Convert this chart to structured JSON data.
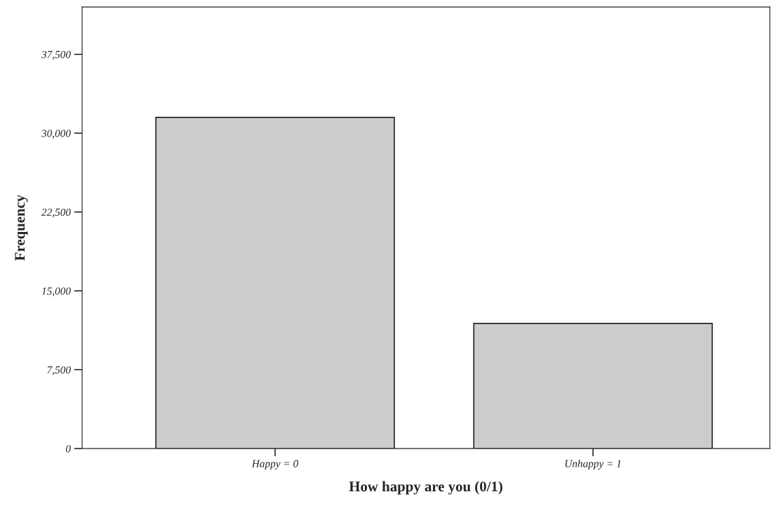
{
  "chart_data": {
    "type": "bar",
    "xlabel": "How happy are you (0/1)",
    "ylabel": "Frequency",
    "categories": [
      "Happy = 0",
      "Unhappy = 1"
    ],
    "values": [
      31500,
      11900
    ],
    "color": "#cccccc",
    "ylim": [
      0,
      42000
    ],
    "yticks": [
      {
        "value": 0,
        "label": "0"
      },
      {
        "value": 7500,
        "label": "7,500"
      },
      {
        "value": 15000,
        "label": "15,000"
      },
      {
        "value": 22500,
        "label": "22,500"
      },
      {
        "value": 30000,
        "label": "30,000"
      },
      {
        "value": 37500,
        "label": "37,500"
      }
    ],
    "grid": false,
    "legend": false
  }
}
